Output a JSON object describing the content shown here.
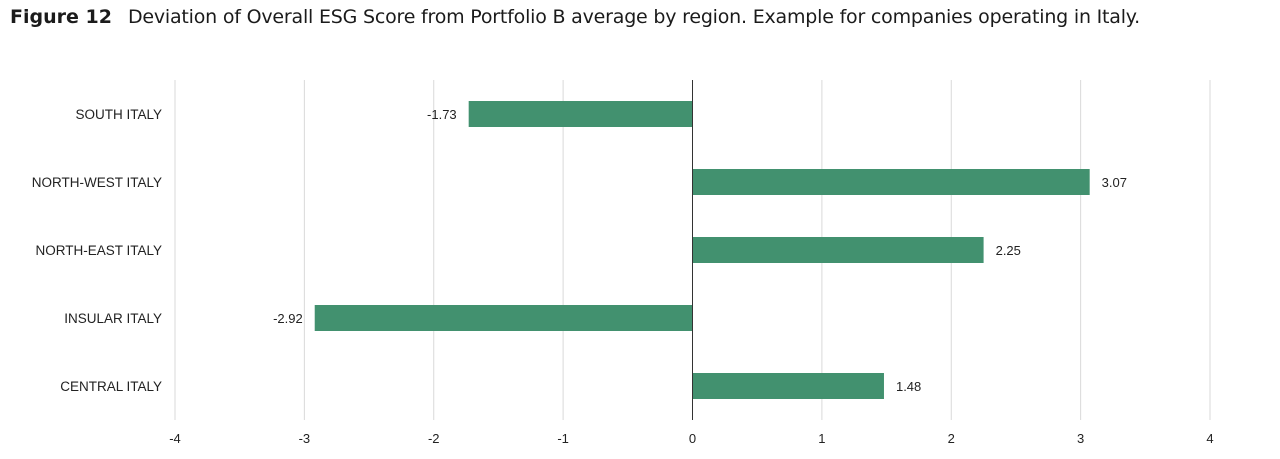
{
  "figure": {
    "label": "Figure 12",
    "title": "Deviation of Overall ESG Score from Portfolio B average by region. Example for companies operating in Italy."
  },
  "chart_data": {
    "type": "bar",
    "orientation": "horizontal",
    "categories": [
      "SOUTH ITALY",
      "NORTH-WEST ITALY",
      "NORTH-EAST ITALY",
      "INSULAR ITALY",
      "CENTRAL ITALY"
    ],
    "values": [
      -1.73,
      3.07,
      2.25,
      -2.92,
      1.48
    ],
    "value_labels": [
      "-1.73",
      "3.07",
      "2.25",
      "-2.92",
      "1.48"
    ],
    "xlim": [
      -4,
      4
    ],
    "xticks": [
      -4,
      -3,
      -2,
      -1,
      0,
      1,
      2,
      3,
      4
    ],
    "grid": true,
    "bar_color": "#42916f",
    "grid_color": "#d9d9d9",
    "zero_line_color": "#333333"
  }
}
